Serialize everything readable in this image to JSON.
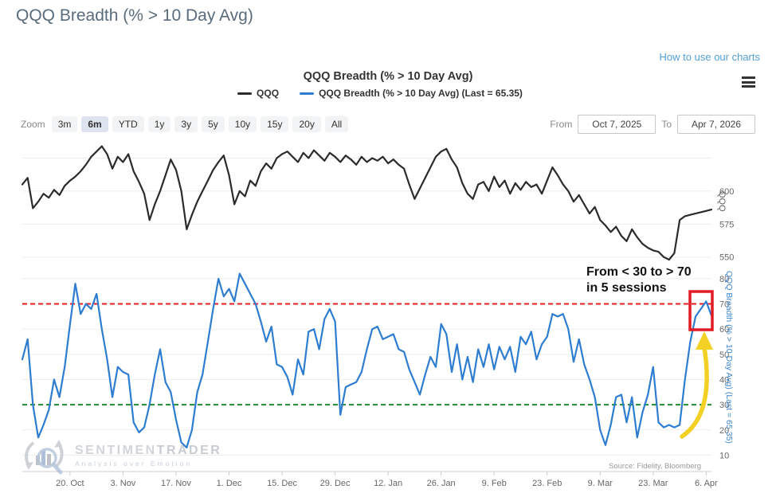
{
  "page": {
    "title": "QQQ Breadth (% > 10 Day Avg)",
    "help_link": "How to use our charts"
  },
  "chart": {
    "title": "QQQ Breadth (% > 10 Day Avg)",
    "legend": [
      {
        "label": "QQQ",
        "color": "#2b2b2b"
      },
      {
        "label": "QQQ Breadth (% > 10 Day Avg) (Last = 65.35)",
        "color": "#2e7dd1"
      }
    ],
    "toolbar": {
      "zoom_label": "Zoom",
      "buttons": [
        "3m",
        "6m",
        "YTD",
        "1y",
        "3y",
        "5y",
        "10y",
        "15y",
        "20y",
        "All"
      ],
      "active_button": "6m",
      "from_label": "From",
      "from_value": "Oct 7, 2025",
      "to_label": "To",
      "to_value": "Apr 7, 2026"
    },
    "annotation": {
      "line1": "From < 30 to > 70",
      "line2": "in 5 sessions"
    },
    "source": "Source: Fidelity, Bloomberg",
    "watermark": {
      "name_left": "SENTIMEN",
      "name_right": "TRADER",
      "tagline": "Analysis over Emotion"
    },
    "colors": {
      "qqq_line": "#2b2b2b",
      "breadth_line": "#2e7dd1",
      "upper_band": "#e02025",
      "lower_band": "#1f8a2f",
      "highlight_box": "#e01b24",
      "arrow": "#f3d024",
      "grid": "#ededed",
      "axis": "#cccccc",
      "tick_text": "#666666"
    }
  },
  "chart_data": [
    {
      "type": "line",
      "name": "QQQ",
      "panel": "top",
      "ylabel": "QQQ",
      "y_tick_labels": [
        550,
        575,
        600
      ],
      "y_gridlines": [
        550,
        575,
        600,
        625
      ],
      "ylim": [
        545,
        641
      ],
      "values": [
        605,
        610,
        587,
        592,
        598,
        595,
        601,
        597,
        604,
        608,
        611,
        615,
        620,
        626,
        630,
        634,
        628,
        617,
        626,
        622,
        628,
        615,
        607,
        598,
        578,
        590,
        600,
        612,
        624,
        616,
        600,
        571,
        582,
        592,
        600,
        608,
        616,
        622,
        627,
        612,
        590,
        600,
        596,
        608,
        604,
        615,
        621,
        617,
        625,
        628,
        630,
        626,
        622,
        629,
        625,
        631,
        627,
        623,
        629,
        626,
        622,
        627,
        624,
        620,
        626,
        622,
        625,
        623,
        626,
        621,
        624,
        620,
        617,
        605,
        594,
        602,
        610,
        618,
        626,
        630,
        632,
        624,
        618,
        606,
        598,
        594,
        605,
        607,
        600,
        611,
        603,
        608,
        598,
        606,
        601,
        607,
        603,
        605,
        598,
        608,
        618,
        612,
        605,
        600,
        592,
        597,
        590,
        583,
        588,
        578,
        574,
        569,
        573,
        566,
        562,
        571,
        565,
        560,
        557,
        555,
        554,
        550,
        548,
        553,
        578,
        581,
        582,
        583,
        584,
        585,
        586
      ]
    },
    {
      "type": "line",
      "name": "QQQ Breadth (% > 10 Day Avg)",
      "panel": "bottom",
      "ylabel": "QQQ Breadth (% > 10 Day Avg) (Last = 65.35)",
      "last_value": 65.35,
      "y_tick_labels": [
        10,
        20,
        30,
        40,
        50,
        60,
        70,
        80
      ],
      "y_gridlines": [
        10,
        20,
        30,
        40,
        50,
        60,
        70,
        80
      ],
      "ylim": [
        3.5,
        82.5
      ],
      "reference_lines": [
        {
          "value": 70,
          "color": "#e02025",
          "style": "dashed"
        },
        {
          "value": 30,
          "color": "#1f8a2f",
          "style": "dashed"
        }
      ],
      "values": [
        48,
        56,
        30,
        17,
        22,
        28,
        40,
        33,
        45,
        62,
        78,
        66,
        70,
        68,
        74,
        60,
        48,
        33,
        45,
        43,
        42,
        23,
        19,
        21,
        30,
        42,
        52,
        39,
        35,
        24,
        15,
        13,
        20,
        35,
        42,
        55,
        68,
        80,
        73,
        76,
        71,
        82,
        78,
        74,
        70,
        63,
        55,
        61,
        46,
        45,
        41,
        34,
        48,
        42,
        59,
        60,
        52,
        64,
        68,
        63,
        26,
        37,
        38,
        39,
        43,
        52,
        60,
        61,
        56,
        57,
        58,
        52,
        51,
        44,
        39,
        34,
        42,
        49,
        45,
        62,
        58,
        43,
        54,
        40,
        49,
        39,
        52,
        45,
        54,
        44,
        53,
        48,
        53,
        43,
        57,
        54,
        59,
        48,
        54,
        57,
        66,
        65,
        66,
        60,
        47,
        56,
        46,
        40,
        33,
        20,
        14,
        22,
        33,
        34,
        23,
        33,
        17,
        27,
        34,
        45,
        23,
        21,
        22,
        21,
        22,
        40,
        55,
        65,
        68,
        71,
        65.35
      ]
    }
  ],
  "x_axis": {
    "tick_labels": [
      "20. Oct",
      "3. Nov",
      "17. Nov",
      "1. Dec",
      "15. Dec",
      "29. Dec",
      "12. Jan",
      "26. Jan",
      "9. Feb",
      "23. Feb",
      "9. Mar",
      "23. Mar",
      "6. Apr"
    ],
    "range_start": "Oct 7, 2025",
    "range_end": "Apr 7, 2026"
  }
}
